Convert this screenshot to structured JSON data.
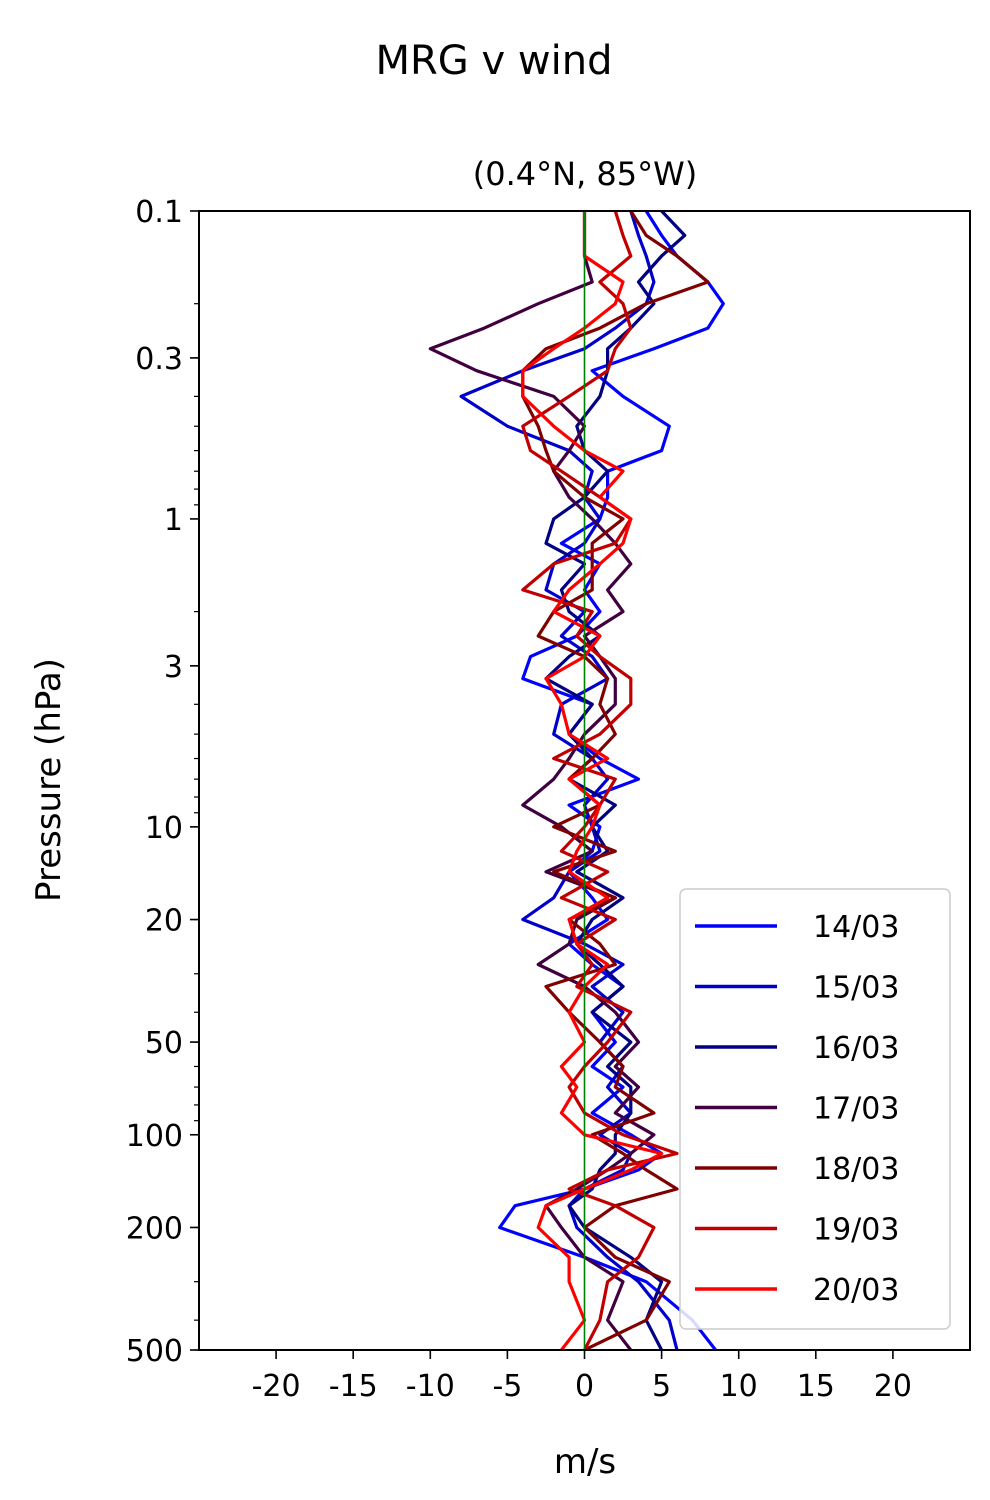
{
  "chart_data": {
    "type": "line",
    "title": "MRG v wind",
    "subtitle": "(0.4°N, 85°W)",
    "xlabel": "m/s",
    "ylabel": "Pressure (hPa)",
    "xlim": [
      -25,
      25
    ],
    "ylim": [
      500,
      0.1
    ],
    "y_scale": "log",
    "y_inverted": true,
    "x_ticks": [
      -20,
      -15,
      -10,
      -5,
      0,
      5,
      10,
      15,
      20
    ],
    "x_tick_labels": [
      "-20",
      "-15",
      "-10",
      "-5",
      "0",
      "5",
      "10",
      "15",
      "20"
    ],
    "y_ticks": [
      0.1,
      0.3,
      1,
      3,
      10,
      20,
      50,
      100,
      200,
      500
    ],
    "y_tick_labels": [
      "0.1",
      "0.3",
      "1",
      "3",
      "10",
      "20",
      "50",
      "100",
      "200",
      "500"
    ],
    "reference_line": {
      "x": 0,
      "color": "#008000"
    },
    "legend_position": "lower-right",
    "pressure_levels": [
      500,
      400,
      300,
      250,
      200,
      170,
      150,
      130,
      115,
      100,
      85,
      70,
      60,
      50,
      40,
      33,
      28,
      24,
      20,
      17,
      14,
      12,
      10,
      8.5,
      7,
      6,
      5,
      4,
      3.3,
      2.8,
      2.4,
      2,
      1.7,
      1.4,
      1.2,
      1,
      0.85,
      0.7,
      0.6,
      0.5,
      0.4,
      0.33,
      0.28,
      0.24,
      0.2,
      0.17,
      0.14,
      0.12,
      0.1
    ],
    "series": [
      {
        "name": "14/03",
        "color": "#0000ff",
        "values": [
          8.5,
          7,
          4,
          0,
          -5.5,
          -4.5,
          0,
          3.5,
          5,
          3,
          0.5,
          2.5,
          0.5,
          2,
          0.5,
          2.5,
          0.5,
          -1,
          1.5,
          0.5,
          -1,
          0.5,
          1,
          -1,
          3.5,
          1,
          -1,
          0.5,
          -4,
          -3.5,
          -0.5,
          1,
          0,
          1,
          -1.5,
          1,
          1.5,
          1.5,
          5,
          5.5,
          2.5,
          0.5,
          4.5,
          8,
          9,
          8,
          6,
          5,
          4
        ]
      },
      {
        "name": "15/03",
        "color": "#0000cc",
        "values": [
          6,
          5.5,
          3.5,
          1.5,
          -0.5,
          -1,
          0,
          2.5,
          3,
          1,
          3,
          1.5,
          2.5,
          1,
          2.5,
          0.5,
          2.5,
          0,
          -4,
          -2,
          -1,
          1,
          0.5,
          0,
          1.5,
          0.5,
          -2,
          -1.5,
          1.5,
          0.5,
          -1.5,
          0,
          -2.5,
          -2,
          0,
          1,
          0,
          0.5,
          -1,
          -5,
          -8,
          -4,
          0,
          2,
          4,
          4.5,
          4,
          3.5,
          3
        ]
      },
      {
        "name": "16/03",
        "color": "#000080",
        "values": [
          5,
          4,
          5,
          3,
          0,
          -1,
          0.5,
          1,
          2,
          2,
          3,
          3,
          1.5,
          3,
          0.5,
          2.5,
          1,
          -0.5,
          0.5,
          2.5,
          -0.5,
          1.5,
          0.5,
          2,
          -1,
          0.5,
          -1,
          0.5,
          -2.5,
          -1,
          1,
          -1,
          -1.5,
          0,
          -2.5,
          -2,
          0,
          1.5,
          0,
          -0.5,
          1,
          1.5,
          1.5,
          3,
          4.5,
          3.5,
          5,
          6.5,
          5
        ]
      },
      {
        "name": "17/03",
        "color": "#400040",
        "values": [
          3,
          1.5,
          2.5,
          0,
          -1.5,
          -2.5,
          -0.5,
          1.5,
          3,
          4.5,
          2,
          3.5,
          2,
          3.5,
          2,
          0,
          -3,
          -1,
          -0.5,
          2,
          -2.5,
          0.5,
          -1.5,
          -4,
          -2,
          -1,
          0,
          2,
          2,
          1,
          0,
          2.5,
          1.5,
          3,
          2,
          0.5,
          -1,
          -2,
          -1,
          0,
          -2,
          -7,
          -10,
          -6.5,
          -3,
          0.5,
          0,
          0,
          0
        ]
      },
      {
        "name": "18/03",
        "color": "#800000",
        "values": [
          0,
          4,
          5.5,
          2,
          0,
          2,
          6,
          4,
          2.5,
          0.5,
          4.5,
          2,
          2.5,
          1,
          -1,
          -2.5,
          2,
          1,
          -1,
          2,
          -2,
          2,
          -2,
          1,
          -1,
          0.5,
          2,
          1,
          1.5,
          0,
          -3,
          -2,
          0.5,
          0.5,
          0.5,
          2.5,
          0,
          -2,
          -2.5,
          -3,
          -4,
          -4,
          -2.5,
          1,
          4,
          8,
          6,
          4,
          3
        ]
      },
      {
        "name": "19/03",
        "color": "#c00000",
        "values": [
          0,
          1,
          1.5,
          3.5,
          4.5,
          2,
          -1,
          1.5,
          6,
          2.5,
          0,
          -1,
          0,
          1.5,
          3,
          -0.5,
          0.5,
          -0.5,
          2,
          -1.5,
          1.5,
          -1.5,
          0,
          1,
          2,
          -2,
          1,
          3,
          3,
          1,
          -0.5,
          0.5,
          -4,
          -2,
          2,
          3,
          1,
          -1.5,
          -3.5,
          -4,
          -1,
          1.5,
          2,
          3,
          2.5,
          1,
          3,
          2.5,
          2
        ]
      },
      {
        "name": "20/03",
        "color": "#ff0000",
        "values": [
          -1.5,
          0,
          -1,
          -1,
          -3,
          -2.5,
          0,
          3,
          5,
          0,
          -1.5,
          -0.5,
          -1.5,
          0,
          -1,
          0,
          1.5,
          -0.5,
          -1,
          1.5,
          -1,
          -0.5,
          0.5,
          1,
          -1,
          1.5,
          -1,
          -1.5,
          -2.5,
          0,
          1,
          -2,
          -1,
          1,
          2.5,
          3,
          1,
          2.5,
          0,
          -2,
          -4,
          -4,
          -2,
          0,
          2,
          2.5,
          0,
          0,
          0
        ]
      }
    ]
  }
}
